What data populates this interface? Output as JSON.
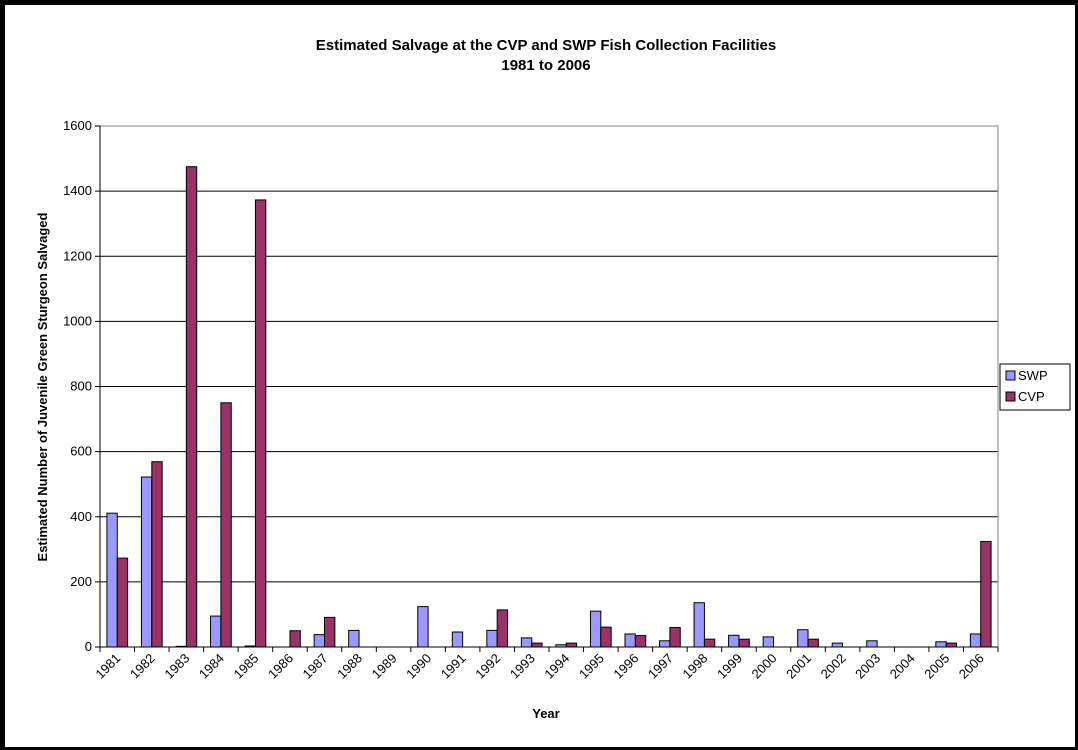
{
  "chart_data": {
    "type": "bar",
    "title": "Estimated Salvage at the CVP and SWP Fish Collection Facilities",
    "subtitle": "1981 to 2006",
    "xlabel": "Year",
    "ylabel": "Estimated Number of Juvenile Green Sturgeon Salvaged",
    "ylim": [
      0,
      1600
    ],
    "yticks": [
      "0",
      "200",
      "400",
      "600",
      "800",
      "1000",
      "1200",
      "1400",
      "1600"
    ],
    "grid": true,
    "legend_position": "right",
    "categories": [
      "1981",
      "1982",
      "1983",
      "1984",
      "1985",
      "1986",
      "1987",
      "1988",
      "1989",
      "1990",
      "1991",
      "1992",
      "1993",
      "1994",
      "1995",
      "1996",
      "1997",
      "1998",
      "1999",
      "2000",
      "2001",
      "2002",
      "2003",
      "2004",
      "2005",
      "2006"
    ],
    "series": [
      {
        "name": "SWP",
        "color": "#9999FF",
        "values": [
          411,
          522,
          2,
          95,
          3,
          0,
          38,
          51,
          0,
          124,
          46,
          51,
          28,
          7,
          110,
          40,
          19,
          136,
          36,
          31,
          53,
          12,
          19,
          0,
          16,
          40
        ]
      },
      {
        "name": "CVP",
        "color": "#993366",
        "values": [
          273,
          569,
          1475,
          750,
          1373,
          50,
          91,
          0,
          0,
          0,
          0,
          114,
          12,
          12,
          61,
          35,
          60,
          24,
          24,
          0,
          24,
          0,
          0,
          0,
          12,
          324
        ]
      }
    ]
  }
}
